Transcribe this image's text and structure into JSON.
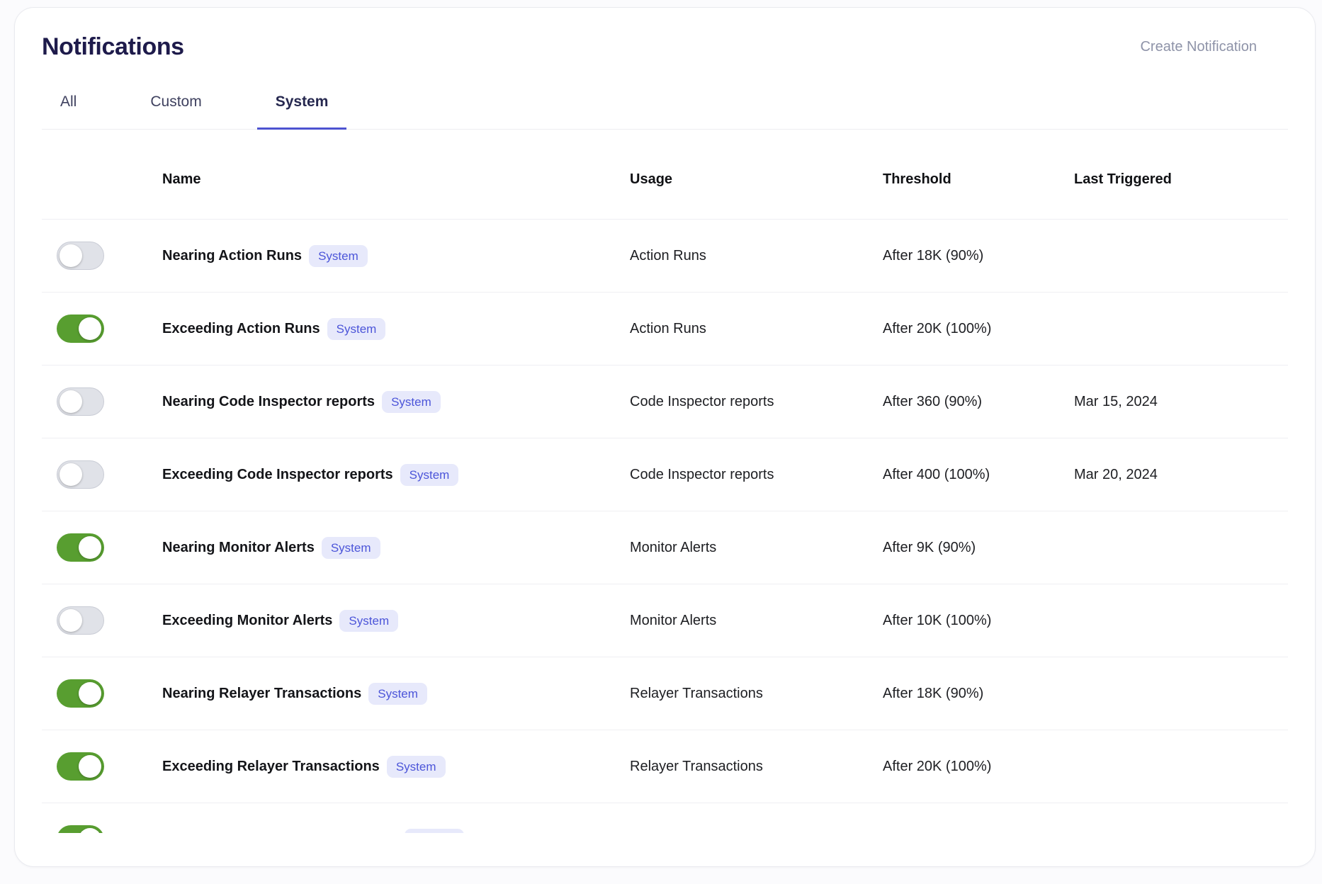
{
  "page": {
    "title": "Notifications",
    "create_button_label": "Create Notification"
  },
  "tabs": [
    {
      "label": "All",
      "active": false
    },
    {
      "label": "Custom",
      "active": false
    },
    {
      "label": "System",
      "active": true
    }
  ],
  "table": {
    "columns": [
      "Name",
      "Usage",
      "Threshold",
      "Last Triggered"
    ],
    "rows": [
      {
        "enabled": false,
        "name": "Nearing Action Runs",
        "badge": "System",
        "usage": "Action Runs",
        "threshold": "After 18K (90%)",
        "last_triggered": ""
      },
      {
        "enabled": true,
        "name": "Exceeding Action Runs",
        "badge": "System",
        "usage": "Action Runs",
        "threshold": "After 20K (100%)",
        "last_triggered": ""
      },
      {
        "enabled": false,
        "name": "Nearing Code Inspector reports",
        "badge": "System",
        "usage": "Code Inspector reports",
        "threshold": "After 360 (90%)",
        "last_triggered": "Mar 15, 2024"
      },
      {
        "enabled": false,
        "name": "Exceeding Code Inspector reports",
        "badge": "System",
        "usage": "Code Inspector reports",
        "threshold": "After 400 (100%)",
        "last_triggered": "Mar 20, 2024"
      },
      {
        "enabled": true,
        "name": "Nearing Monitor Alerts",
        "badge": "System",
        "usage": "Monitor Alerts",
        "threshold": "After 9K (90%)",
        "last_triggered": ""
      },
      {
        "enabled": false,
        "name": "Exceeding Monitor Alerts",
        "badge": "System",
        "usage": "Monitor Alerts",
        "threshold": "After 10K (100%)",
        "last_triggered": ""
      },
      {
        "enabled": true,
        "name": "Nearing Relayer Transactions",
        "badge": "System",
        "usage": "Relayer Transactions",
        "threshold": "After 18K (90%)",
        "last_triggered": ""
      },
      {
        "enabled": true,
        "name": "Exceeding Relayer Transactions",
        "badge": "System",
        "usage": "Relayer Transactions",
        "threshold": "After 20K (100%)",
        "last_triggered": ""
      },
      {
        "enabled": true,
        "name": "",
        "badge": "",
        "usage": "",
        "threshold": "",
        "last_triggered": "",
        "partial": true
      }
    ]
  },
  "colors": {
    "title_navy": "#1e1b4b",
    "accent_indigo": "#4d53d1",
    "badge_bg": "#e7e9fb",
    "badge_text": "#4c55d9",
    "toggle_on_green": "#589e30",
    "toggle_off_gray": "#e0e2e8",
    "muted_gray": "#8e93a8"
  }
}
